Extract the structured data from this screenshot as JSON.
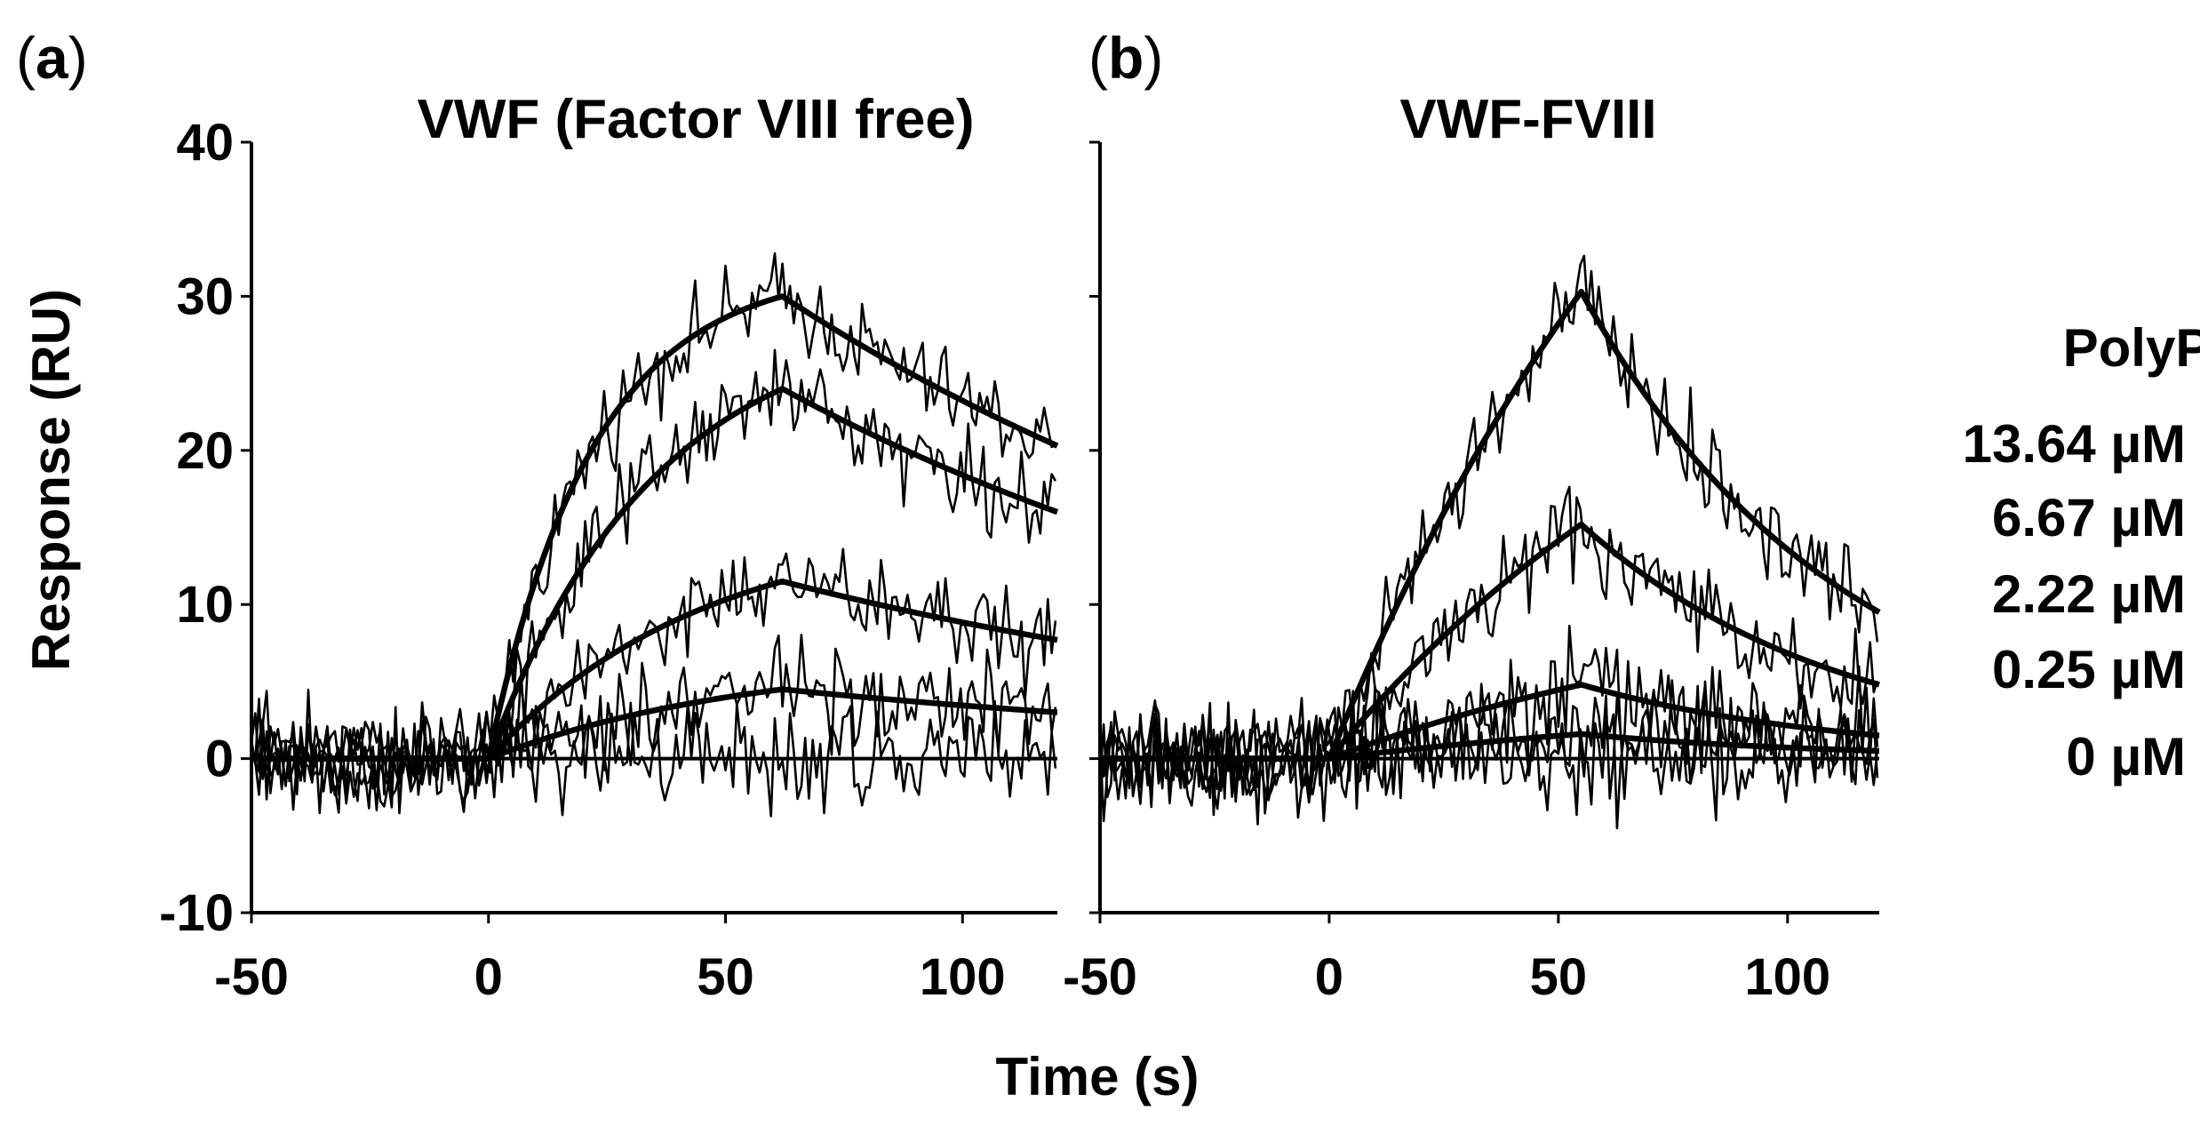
{
  "figure": {
    "x_axis_title": "Time (s)",
    "y_axis_title": "Response (RU)",
    "legend_title": "PolyP",
    "legend_items": [
      "13.64 µM",
      "6.67 µM",
      "2.22 µM",
      "0.25 µM",
      "0 µM"
    ]
  },
  "chart_data": [
    {
      "type": "line",
      "panel_label": "a",
      "title": "VWF (Factor VIII free)",
      "xlabel": "Time (s)",
      "ylabel": "Response (RU)",
      "xlim": [
        -50,
        120
      ],
      "ylim": [
        -10,
        40
      ],
      "xticks": [
        "-50",
        "0",
        "50",
        "100"
      ],
      "yticks": [
        "-10",
        "0",
        "10",
        "20",
        "30",
        "40"
      ],
      "injection_start_s": 0,
      "injection_end_s": 62,
      "series": [
        {
          "name": "13.64 µM",
          "plateau_RU": 30,
          "end_RU": 20.3,
          "noise_RU": 2.2,
          "rise_tau_s": 22
        },
        {
          "name": "6.67 µM",
          "plateau_RU": 24,
          "end_RU": 16,
          "noise_RU": 2.2,
          "rise_tau_s": 35
        },
        {
          "name": "2.22 µM",
          "plateau_RU": 11.5,
          "end_RU": 7.7,
          "noise_RU": 2.4,
          "rise_tau_s": 45
        },
        {
          "name": "0.25 µM",
          "plateau_RU": 4.5,
          "end_RU": 3,
          "noise_RU": 2.5,
          "rise_tau_s": 55
        },
        {
          "name": "0 µM",
          "plateau_RU": 0,
          "end_RU": 0,
          "noise_RU": 2.6,
          "rise_tau_s": 30
        }
      ]
    },
    {
      "type": "line",
      "panel_label": "b",
      "title": "VWF-FVIII",
      "xlabel": "Time (s)",
      "ylabel": "Response (RU)",
      "xlim": [
        -50,
        120
      ],
      "ylim": [
        -10,
        40
      ],
      "xticks": [
        "-50",
        "0",
        "50",
        "100"
      ],
      "yticks": [
        "-10",
        "0",
        "10",
        "20",
        "30",
        "40"
      ],
      "injection_start_s": 0,
      "injection_end_s": 55,
      "series": [
        {
          "name": "13.64 µM",
          "plateau_RU": 30.3,
          "end_RU": 9.5,
          "noise_RU": 2.4,
          "rise_tau_s": 95
        },
        {
          "name": "6.67 µM",
          "plateau_RU": 15.2,
          "end_RU": 4.8,
          "noise_RU": 2.4,
          "rise_tau_s": 100
        },
        {
          "name": "2.22 µM",
          "plateau_RU": 4.8,
          "end_RU": 1.5,
          "noise_RU": 2.6,
          "rise_tau_s": 110
        },
        {
          "name": "0.25 µM",
          "plateau_RU": 1.6,
          "end_RU": 0.5,
          "noise_RU": 2.6,
          "rise_tau_s": 120
        },
        {
          "name": "0 µM",
          "plateau_RU": 0,
          "end_RU": 0,
          "noise_RU": 2.6,
          "rise_tau_s": 30
        }
      ]
    }
  ]
}
